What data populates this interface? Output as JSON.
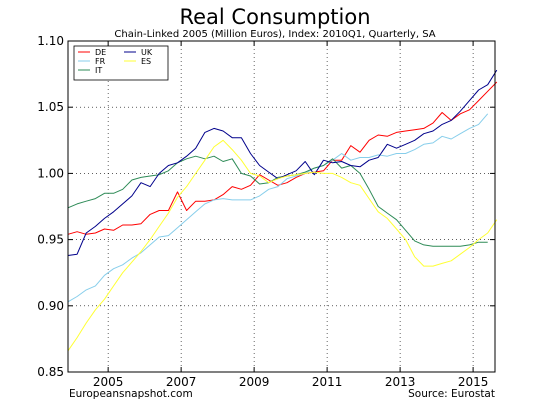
{
  "chart_data": {
    "type": "line",
    "title": "Real Consumption",
    "subtitle": "Chain-Linked 2005 (Million Euros), Index: 2010Q1, Quarterly, SA",
    "xlabel": "",
    "ylabel": "",
    "xlim": [
      2003.9,
      2015.6
    ],
    "ylim": [
      0.85,
      1.1
    ],
    "x_ticks": [
      2005,
      2007,
      2009,
      2011,
      2013,
      2015
    ],
    "y_ticks": [
      0.85,
      0.9,
      0.95,
      1.0,
      1.05,
      1.1
    ],
    "y_tick_labels": [
      "0.85",
      "0.90",
      "0.95",
      "1.00",
      "1.05",
      "1.10"
    ],
    "grid": true,
    "legend_position": "top-left",
    "source_left": "Europeansnapshot.com",
    "source_right": "Source: Eurostat",
    "x_start": 2003.9,
    "x_step": 0.25,
    "series": [
      {
        "name": "DE",
        "color": "#ff0000",
        "values": [
          0.954,
          0.956,
          0.954,
          0.955,
          0.958,
          0.957,
          0.961,
          0.961,
          0.962,
          0.969,
          0.972,
          0.972,
          0.986,
          0.972,
          0.979,
          0.979,
          0.98,
          0.984,
          0.99,
          0.988,
          0.991,
          0.999,
          0.995,
          0.991,
          0.993,
          0.997,
          1.0,
          1.001,
          1.002,
          1.01,
          1.01,
          1.021,
          1.016,
          1.025,
          1.029,
          1.028,
          1.031,
          1.032,
          1.033,
          1.034,
          1.038,
          1.046,
          1.04,
          1.045,
          1.048,
          1.055,
          1.062,
          1.069
        ]
      },
      {
        "name": "FR",
        "color": "#87ceeb",
        "values": [
          0.903,
          0.907,
          0.912,
          0.915,
          0.923,
          0.928,
          0.931,
          0.936,
          0.94,
          0.946,
          0.952,
          0.953,
          0.959,
          0.965,
          0.971,
          0.977,
          0.98,
          0.981,
          0.98,
          0.98,
          0.98,
          0.983,
          0.988,
          0.99,
          0.996,
          0.998,
          1.0,
          1.004,
          1.006,
          1.01,
          1.015,
          1.01,
          1.012,
          1.012,
          1.014,
          1.013,
          1.015,
          1.015,
          1.018,
          1.022,
          1.023,
          1.028,
          1.026,
          1.03,
          1.034,
          1.037,
          1.045
        ]
      },
      {
        "name": "IT",
        "color": "#2e8b57",
        "values": [
          0.974,
          0.977,
          0.979,
          0.981,
          0.985,
          0.985,
          0.988,
          0.995,
          0.997,
          0.998,
          0.999,
          1.002,
          1.008,
          1.011,
          1.013,
          1.011,
          1.013,
          1.009,
          1.011,
          1.0,
          0.998,
          0.992,
          0.993,
          0.997,
          0.998,
          0.999,
          1.001,
          1.004,
          1.006,
          1.011,
          1.004,
          1.006,
          1.0,
          0.988,
          0.975,
          0.97,
          0.965,
          0.957,
          0.949,
          0.946,
          0.945,
          0.945,
          0.945,
          0.945,
          0.946,
          0.948,
          0.948
        ]
      },
      {
        "name": "UK",
        "color": "#00008b",
        "values": [
          0.938,
          0.939,
          0.955,
          0.96,
          0.966,
          0.971,
          0.977,
          0.983,
          0.993,
          0.99,
          1.0,
          1.006,
          1.008,
          1.013,
          1.019,
          1.031,
          1.034,
          1.032,
          1.027,
          1.027,
          1.015,
          1.006,
          1.001,
          0.996,
          0.999,
          1.002,
          1.009,
          0.999,
          1.01,
          1.008,
          1.009,
          1.006,
          1.005,
          1.01,
          1.012,
          1.022,
          1.019,
          1.022,
          1.025,
          1.03,
          1.032,
          1.037,
          1.04,
          1.047,
          1.055,
          1.063,
          1.067,
          1.078
        ]
      },
      {
        "name": "ES",
        "color": "#ffff33",
        "values": [
          0.866,
          0.876,
          0.887,
          0.897,
          0.905,
          0.915,
          0.925,
          0.933,
          0.941,
          0.95,
          0.96,
          0.97,
          0.982,
          0.99,
          1.0,
          1.01,
          1.02,
          1.025,
          1.018,
          1.01,
          1.0,
          0.998,
          0.993,
          0.996,
          0.998,
          0.999,
          1.0,
          1.001,
          1.0,
          1.0,
          0.997,
          0.993,
          0.991,
          0.981,
          0.971,
          0.966,
          0.958,
          0.95,
          0.937,
          0.93,
          0.93,
          0.932,
          0.934,
          0.939,
          0.944,
          0.95,
          0.955,
          0.965
        ]
      }
    ]
  }
}
